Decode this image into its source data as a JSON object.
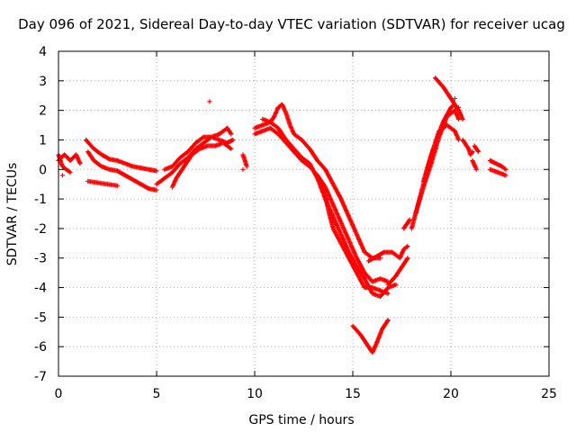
{
  "chart_data": {
    "type": "scatter",
    "title": "Day 096 of 2021, Sidereal Day-to-day VTEC variation (SDTVAR) for receiver ucag",
    "xlabel": "GPS time / hours",
    "ylabel": "SDTVAR / TECUs",
    "xlim": [
      0,
      25
    ],
    "ylim": [
      -7,
      4
    ],
    "xticks": [
      "0",
      "5",
      "10",
      "15",
      "20",
      "25"
    ],
    "yticks": [
      "-7",
      "-6",
      "-5",
      "-4",
      "-3",
      "-2",
      "-1",
      "0",
      "1",
      "2",
      "3",
      "4"
    ],
    "grid": true,
    "legend": "none",
    "marker": "plus",
    "color": "#ff0000",
    "series": [
      {
        "tracks": [
          [
            [
              0.0,
              0.3
            ],
            [
              0.3,
              0.5
            ],
            [
              0.6,
              0.3
            ],
            [
              0.9,
              0.5
            ],
            [
              1.1,
              0.2
            ]
          ],
          [
            [
              0.0,
              0.5
            ],
            [
              0.2,
              0.1
            ],
            [
              0.4,
              0.0
            ],
            [
              0.6,
              -0.1
            ]
          ],
          [
            [
              1.4,
              1.0
            ],
            [
              1.8,
              0.7
            ],
            [
              2.2,
              0.5
            ],
            [
              2.6,
              0.35
            ],
            [
              3.0,
              0.3
            ],
            [
              3.4,
              0.2
            ],
            [
              3.8,
              0.1
            ],
            [
              4.2,
              0.05
            ],
            [
              4.6,
              0.0
            ],
            [
              5.0,
              -0.05
            ]
          ],
          [
            [
              1.5,
              0.6
            ],
            [
              1.8,
              0.3
            ],
            [
              2.2,
              0.1
            ],
            [
              2.6,
              0.0
            ],
            [
              3.0,
              -0.05
            ],
            [
              3.4,
              -0.2
            ],
            [
              3.8,
              -0.35
            ],
            [
              4.2,
              -0.5
            ],
            [
              4.6,
              -0.65
            ],
            [
              5.0,
              -0.7
            ]
          ],
          [
            [
              1.5,
              -0.4
            ],
            [
              2.0,
              -0.45
            ],
            [
              2.5,
              -0.5
            ],
            [
              3.0,
              -0.55
            ]
          ],
          [
            [
              5.0,
              -0.5
            ],
            [
              5.4,
              -0.3
            ],
            [
              5.8,
              -0.1
            ],
            [
              6.2,
              0.2
            ],
            [
              6.6,
              0.4
            ],
            [
              7.0,
              0.7
            ],
            [
              7.4,
              0.9
            ],
            [
              7.8,
              1.1
            ],
            [
              8.2,
              1.2
            ],
            [
              8.6,
              1.4
            ],
            [
              8.8,
              1.2
            ]
          ],
          [
            [
              5.4,
              0.0
            ],
            [
              5.8,
              0.1
            ],
            [
              6.2,
              0.4
            ],
            [
              6.6,
              0.6
            ],
            [
              7.0,
              0.9
            ],
            [
              7.4,
              1.1
            ],
            [
              7.8,
              1.1
            ],
            [
              8.2,
              1.0
            ],
            [
              8.6,
              0.9
            ],
            [
              8.9,
              1.0
            ]
          ],
          [
            [
              5.8,
              -0.6
            ],
            [
              6.0,
              -0.3
            ],
            [
              6.4,
              0.1
            ],
            [
              6.8,
              0.5
            ],
            [
              7.2,
              0.7
            ],
            [
              7.6,
              0.8
            ],
            [
              8.0,
              0.8
            ],
            [
              8.4,
              0.9
            ],
            [
              8.8,
              0.7
            ]
          ],
          [
            [
              9.4,
              0.5
            ],
            [
              9.6,
              0.1
            ]
          ],
          [
            [
              10.0,
              1.4
            ],
            [
              10.4,
              1.5
            ],
            [
              10.8,
              1.6
            ],
            [
              11.0,
              1.8
            ],
            [
              11.2,
              2.1
            ],
            [
              11.4,
              2.2
            ],
            [
              11.6,
              1.9
            ],
            [
              11.8,
              1.5
            ],
            [
              12.0,
              1.2
            ],
            [
              12.4,
              1.0
            ],
            [
              12.8,
              0.7
            ],
            [
              13.2,
              0.3
            ],
            [
              13.6,
              0.0
            ],
            [
              14.0,
              -0.5
            ],
            [
              14.4,
              -1.0
            ],
            [
              14.8,
              -1.6
            ],
            [
              15.2,
              -2.2
            ],
            [
              15.6,
              -2.8
            ],
            [
              16.0,
              -3.0
            ],
            [
              16.4,
              -3.0
            ]
          ],
          [
            [
              10.0,
              1.2
            ],
            [
              10.4,
              1.3
            ],
            [
              10.8,
              1.4
            ],
            [
              11.2,
              1.2
            ],
            [
              11.6,
              0.9
            ],
            [
              12.0,
              0.6
            ],
            [
              12.4,
              0.3
            ],
            [
              12.8,
              0.1
            ],
            [
              13.2,
              -0.2
            ],
            [
              13.6,
              -0.6
            ],
            [
              14.0,
              -1.2
            ],
            [
              14.4,
              -1.8
            ],
            [
              14.8,
              -2.4
            ],
            [
              15.2,
              -3.0
            ],
            [
              15.6,
              -3.5
            ],
            [
              16.0,
              -3.8
            ],
            [
              16.4,
              -3.7
            ],
            [
              16.8,
              -3.8
            ]
          ],
          [
            [
              10.4,
              1.7
            ],
            [
              10.8,
              1.6
            ],
            [
              11.2,
              1.4
            ],
            [
              11.6,
              1.0
            ],
            [
              12.0,
              0.7
            ],
            [
              12.4,
              0.4
            ],
            [
              12.8,
              0.2
            ],
            [
              13.2,
              -0.3
            ],
            [
              13.6,
              -1.0
            ],
            [
              14.0,
              -1.6
            ],
            [
              14.4,
              -2.2
            ],
            [
              14.8,
              -2.8
            ],
            [
              15.2,
              -3.3
            ],
            [
              15.6,
              -3.7
            ],
            [
              16.0,
              -4.2
            ],
            [
              16.4,
              -4.3
            ],
            [
              16.8,
              -4.0
            ],
            [
              17.2,
              -3.9
            ]
          ],
          [
            [
              13.4,
              -0.4
            ],
            [
              13.6,
              -0.9
            ],
            [
              13.8,
              -1.5
            ],
            [
              14.0,
              -2.0
            ],
            [
              14.4,
              -2.5
            ],
            [
              14.8,
              -3.0
            ],
            [
              15.2,
              -3.5
            ],
            [
              15.6,
              -4.0
            ],
            [
              16.0,
              -4.0
            ],
            [
              16.4,
              -4.1
            ],
            [
              16.8,
              -4.2
            ]
          ],
          [
            [
              15.8,
              -3.1
            ],
            [
              16.2,
              -2.95
            ],
            [
              16.6,
              -2.8
            ],
            [
              17.0,
              -2.8
            ],
            [
              17.4,
              -3.0
            ],
            [
              17.6,
              -2.7
            ],
            [
              17.8,
              -2.6
            ]
          ],
          [
            [
              16.8,
              -3.9
            ],
            [
              17.2,
              -3.6
            ],
            [
              17.6,
              -3.2
            ],
            [
              17.8,
              -3.0
            ]
          ],
          [
            [
              15.0,
              -5.3
            ],
            [
              15.4,
              -5.6
            ],
            [
              15.8,
              -6.0
            ],
            [
              16.0,
              -6.2
            ],
            [
              16.2,
              -5.9
            ],
            [
              16.5,
              -5.4
            ],
            [
              16.8,
              -5.1
            ]
          ],
          [
            [
              17.6,
              -2.0
            ],
            [
              17.9,
              -1.7
            ]
          ],
          [
            [
              18.0,
              -2.0
            ],
            [
              18.4,
              -1.0
            ],
            [
              18.8,
              0.0
            ],
            [
              19.2,
              0.9
            ],
            [
              19.6,
              1.6
            ],
            [
              20.0,
              2.1
            ],
            [
              20.2,
              2.2
            ]
          ],
          [
            [
              18.2,
              -1.5
            ],
            [
              18.6,
              -0.6
            ],
            [
              19.0,
              0.2
            ],
            [
              19.4,
              1.1
            ],
            [
              19.8,
              1.8
            ],
            [
              20.2,
              2.0
            ],
            [
              20.4,
              1.7
            ]
          ],
          [
            [
              18.6,
              -0.4
            ],
            [
              19.0,
              0.5
            ],
            [
              19.4,
              1.3
            ],
            [
              19.8,
              1.5
            ],
            [
              20.2,
              1.3
            ],
            [
              20.4,
              1.0
            ]
          ],
          [
            [
              19.2,
              3.1
            ],
            [
              19.6,
              2.8
            ],
            [
              20.0,
              2.4
            ],
            [
              20.4,
              2.0
            ],
            [
              20.6,
              1.7
            ]
          ],
          [
            [
              20.6,
              1.0
            ],
            [
              20.9,
              0.7
            ],
            [
              21.0,
              0.5
            ],
            [
              21.1,
              0.6
            ]
          ],
          [
            [
              21.2,
              0.8
            ],
            [
              21.4,
              0.6
            ]
          ],
          [
            [
              21.1,
              0.3
            ],
            [
              21.3,
              0.0
            ]
          ],
          [
            [
              22.0,
              0.3
            ],
            [
              22.3,
              0.2
            ],
            [
              22.6,
              0.1
            ],
            [
              22.8,
              0.0
            ]
          ],
          [
            [
              22.0,
              0.0
            ],
            [
              22.4,
              -0.1
            ],
            [
              22.8,
              -0.2
            ]
          ]
        ],
        "isolated": [
          [
            7.7,
            2.3
          ],
          [
            20.4,
            2.1
          ],
          [
            20.2,
            2.4
          ],
          [
            9.4,
            0.0
          ],
          [
            0.2,
            -0.2
          ]
        ]
      }
    ]
  }
}
